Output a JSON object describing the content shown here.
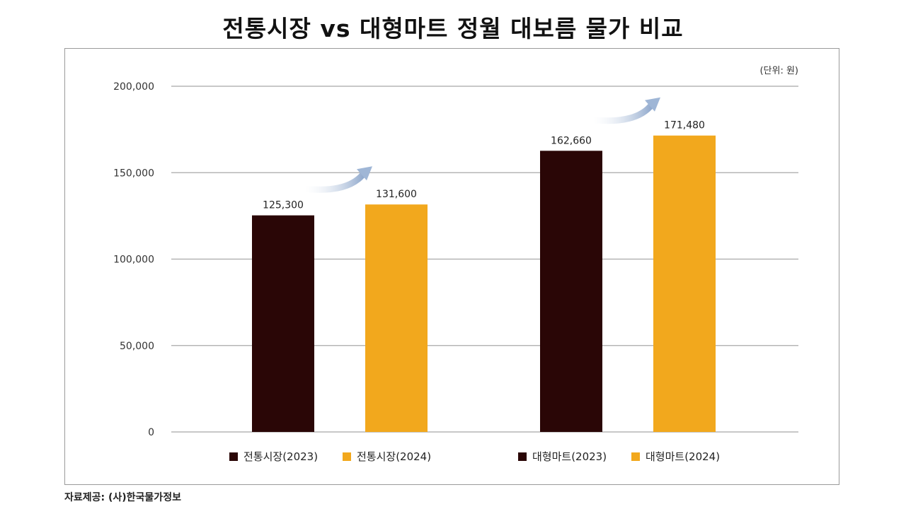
{
  "page": {
    "title": "전통시장 vs 대형마트 정월 대보름 물가 비교",
    "source": "자료제공: (사)한국물가정보"
  },
  "chart_data": {
    "type": "bar",
    "title": "전통시장 vs 대형마트 정월 대보름 물가 비교",
    "unit_note": "(단위: 원)",
    "ylim": [
      0,
      200000
    ],
    "yticks": [
      0,
      50000,
      100000,
      150000,
      200000
    ],
    "ytick_labels": [
      "0",
      "50,000",
      "100,000",
      "150,000",
      "200,000"
    ],
    "grid": true,
    "legend_position": "bottom",
    "groups": [
      {
        "bars": [
          {
            "name": "전통시장(2023)",
            "value": 125300,
            "label": "125,300",
            "color": "#2a0606"
          },
          {
            "name": "전통시장(2024)",
            "value": 131600,
            "label": "131,600",
            "color": "#f2a81d"
          }
        ]
      },
      {
        "bars": [
          {
            "name": "대형마트(2023)",
            "value": 162660,
            "label": "162,660",
            "color": "#2a0606"
          },
          {
            "name": "대형마트(2024)",
            "value": 171480,
            "label": "171,480",
            "color": "#f2a81d"
          }
        ]
      }
    ],
    "legend": [
      {
        "label": "전통시장(2023)",
        "color": "#2a0606"
      },
      {
        "label": "전통시장(2024)",
        "color": "#f2a81d"
      },
      {
        "label": "대형마트(2023)",
        "color": "#2a0606"
      },
      {
        "label": "대형마트(2024)",
        "color": "#f2a81d"
      }
    ],
    "arrow_color": "#9fb6d6"
  }
}
